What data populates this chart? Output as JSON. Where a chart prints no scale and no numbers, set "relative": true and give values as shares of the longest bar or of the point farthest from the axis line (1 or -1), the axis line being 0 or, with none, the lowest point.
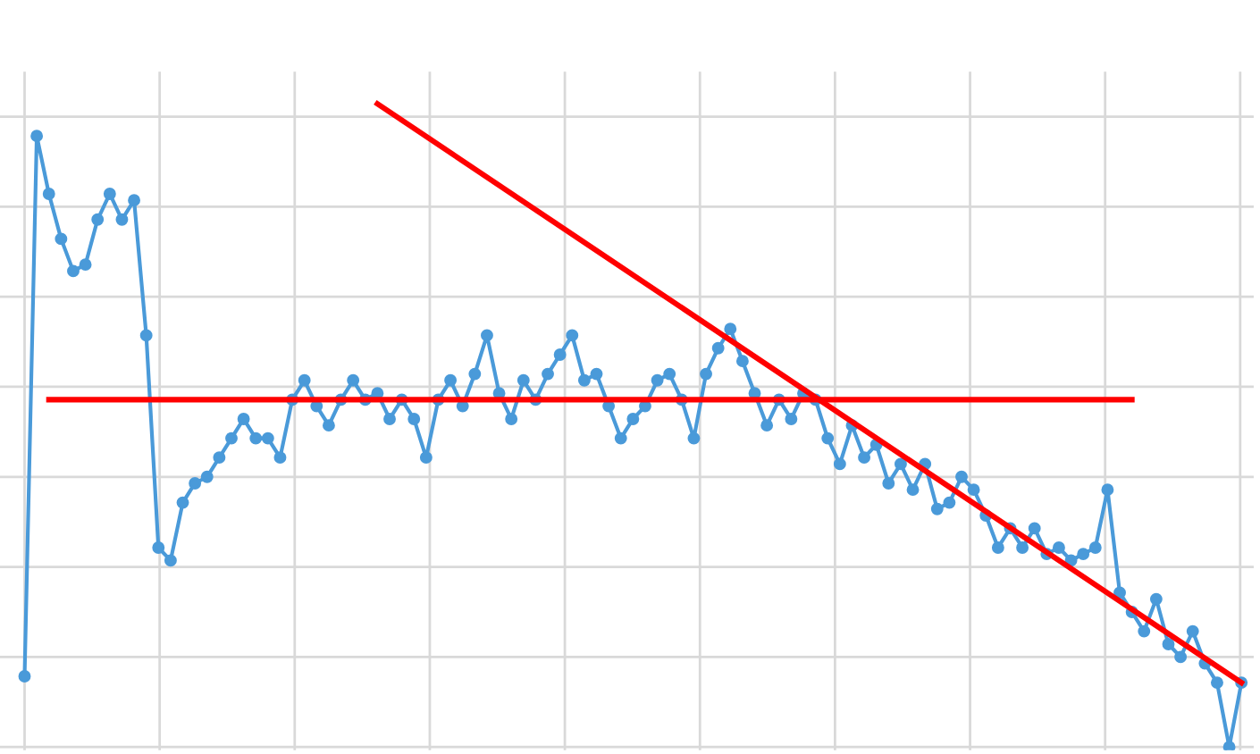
{
  "chart_data": {
    "type": "line",
    "relative": true,
    "grid": true,
    "legend": false,
    "marker": "circle",
    "line_style": "solid",
    "categories": [
      null,
      null,
      null,
      null,
      null,
      null,
      null,
      null,
      null,
      null,
      null,
      null,
      null,
      null,
      null,
      null,
      null,
      null,
      null,
      null,
      null,
      null,
      null,
      null,
      null,
      null,
      null,
      null,
      null,
      null,
      null,
      null,
      null,
      null,
      null,
      null,
      null,
      null,
      null,
      null,
      null,
      null,
      null,
      null,
      null,
      null,
      null,
      null,
      null,
      null,
      null,
      null,
      null,
      null,
      null,
      null,
      null,
      null,
      null,
      null,
      null,
      null,
      null,
      null,
      null,
      null,
      null,
      null,
      null,
      null,
      null,
      null,
      null,
      null,
      null,
      null,
      null,
      null,
      null,
      null,
      null,
      null,
      null,
      null,
      null,
      null,
      null,
      null,
      null,
      null,
      null,
      null,
      null,
      null,
      null,
      null,
      null,
      null,
      null,
      null,
      null
    ],
    "series": [
      {
        "color": "#4a9ad9",
        "values": [
          0.11,
          0.95,
          0.86,
          0.79,
          0.74,
          0.75,
          0.82,
          0.86,
          0.82,
          0.85,
          0.64,
          0.31,
          0.29,
          0.38,
          0.41,
          0.42,
          0.45,
          0.48,
          0.51,
          0.48,
          0.48,
          0.45,
          0.54,
          0.57,
          0.53,
          0.5,
          0.54,
          0.57,
          0.54,
          0.55,
          0.51,
          0.54,
          0.51,
          0.45,
          0.54,
          0.57,
          0.53,
          0.58,
          0.64,
          0.55,
          0.51,
          0.57,
          0.54,
          0.58,
          0.61,
          0.64,
          0.57,
          0.58,
          0.53,
          0.48,
          0.51,
          0.53,
          0.57,
          0.58,
          0.54,
          0.48,
          0.58,
          0.62,
          0.65,
          0.6,
          0.55,
          0.5,
          0.54,
          0.51,
          0.55,
          0.54,
          0.48,
          0.44,
          0.5,
          0.45,
          0.47,
          0.41,
          0.44,
          0.4,
          0.44,
          0.37,
          0.38,
          0.42,
          0.4,
          0.36,
          0.31,
          0.34,
          0.31,
          0.34,
          0.3,
          0.31,
          0.29,
          0.3,
          0.31,
          0.4,
          0.24,
          0.21,
          0.18,
          0.23,
          0.16,
          0.14,
          0.18,
          0.13,
          0.1,
          0,
          0.1
        ]
      },
      {
        "type": "line",
        "marker": "none",
        "color": "#ff0000",
        "values": [
          null,
          null,
          0.54,
          null,
          null,
          null,
          null,
          null,
          null,
          null,
          null,
          null,
          null,
          null,
          null,
          null,
          null,
          null,
          null,
          null,
          null,
          null,
          null,
          null,
          null,
          null,
          null,
          null,
          null,
          null,
          null,
          null,
          null,
          null,
          null,
          null,
          null,
          null,
          null,
          null,
          null,
          null,
          null,
          null,
          null,
          null,
          null,
          null,
          null,
          null,
          null,
          null,
          null,
          null,
          null,
          null,
          null,
          null,
          null,
          null,
          null,
          null,
          null,
          null,
          null,
          null,
          null,
          null,
          null,
          null,
          null,
          null,
          null,
          null,
          null,
          null,
          null,
          null,
          null,
          null,
          null,
          null,
          null,
          null,
          null,
          null,
          null,
          null,
          null,
          null,
          null,
          0.54,
          null,
          null,
          null,
          null,
          null,
          null,
          null,
          null,
          null
        ]
      },
      {
        "type": "line",
        "marker": "none",
        "color": "#ff0000",
        "values": [
          null,
          null,
          null,
          null,
          null,
          null,
          null,
          null,
          null,
          null,
          null,
          null,
          null,
          null,
          null,
          null,
          null,
          null,
          null,
          null,
          null,
          null,
          null,
          null,
          null,
          null,
          null,
          null,
          null,
          1,
          null,
          null,
          null,
          null,
          null,
          null,
          null,
          null,
          null,
          null,
          null,
          null,
          null,
          null,
          null,
          null,
          null,
          null,
          null,
          null,
          null,
          null,
          null,
          null,
          null,
          null,
          null,
          null,
          null,
          null,
          null,
          null,
          null,
          null,
          null,
          null,
          null,
          null,
          null,
          null,
          null,
          null,
          null,
          null,
          null,
          null,
          null,
          null,
          null,
          null,
          null,
          null,
          null,
          null,
          null,
          null,
          null,
          null,
          null,
          null,
          null,
          null,
          null,
          null,
          null,
          null,
          null,
          null,
          null,
          null,
          0.1
        ]
      }
    ]
  }
}
